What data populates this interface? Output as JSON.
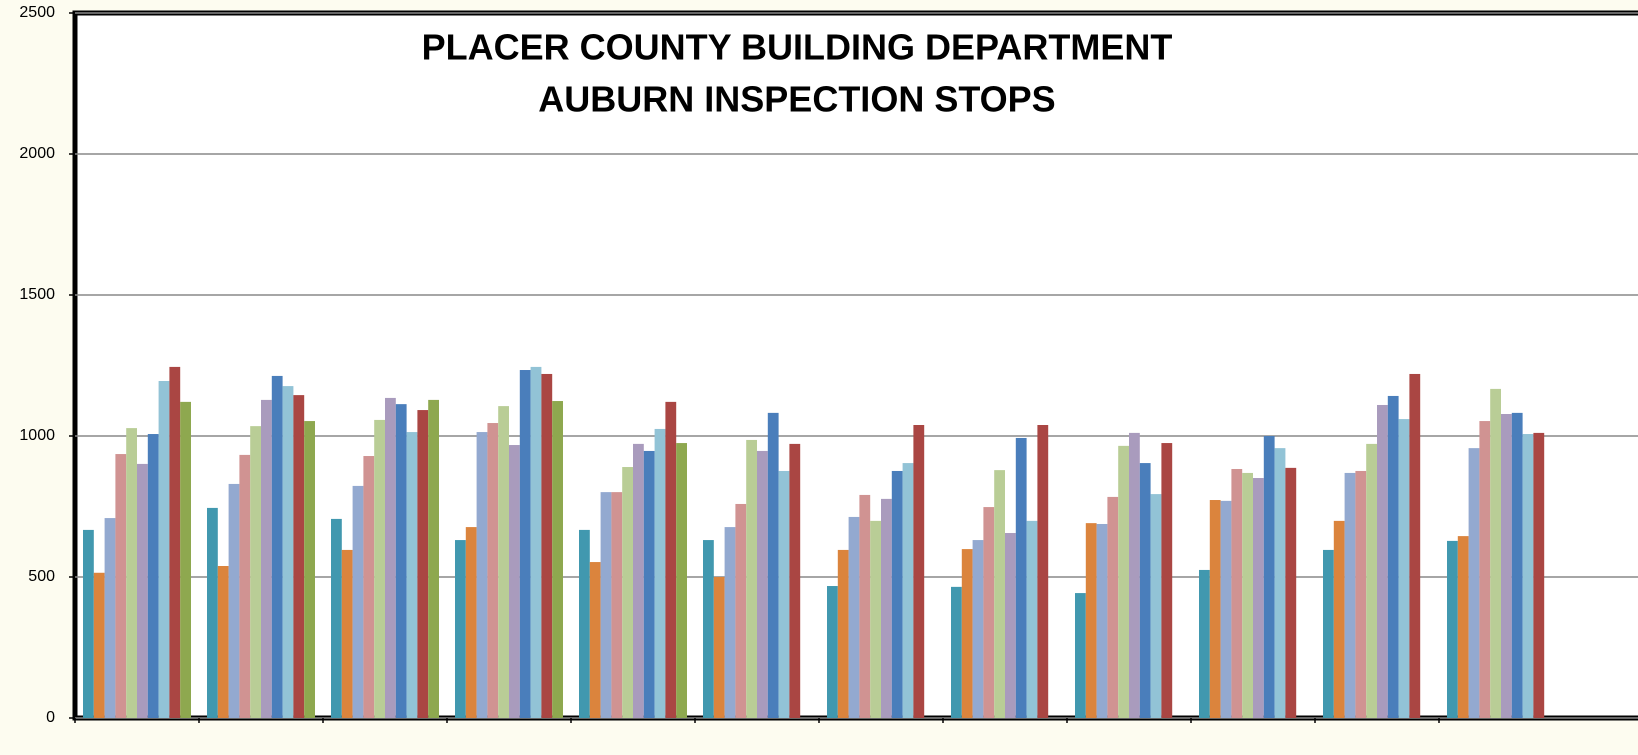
{
  "chart_data": {
    "type": "bar",
    "title": "PLACER COUNTY BUILDING DEPARTMENT",
    "subtitle": "AUBURN INSPECTION STOPS",
    "categories": [
      null,
      null,
      null,
      null,
      null,
      null,
      null,
      null,
      null,
      null,
      null,
      null
    ],
    "series": [
      {
        "color": "#4198af",
        "values": [
          667,
          745,
          706,
          631,
          667,
          631,
          468,
          465,
          443,
          525,
          596,
          628
        ]
      },
      {
        "color": "#db843d",
        "values": [
          515,
          539,
          596,
          677,
          553,
          500,
          596,
          599,
          691,
          773,
          699,
          645
        ]
      },
      {
        "color": "#93a9d0",
        "values": [
          709,
          830,
          823,
          1014,
          801,
          677,
          713,
          631,
          688,
          770,
          869,
          957
        ]
      },
      {
        "color": "#d09392",
        "values": [
          936,
          933,
          929,
          1046,
          801,
          759,
          791,
          748,
          784,
          883,
          876,
          1053
        ]
      },
      {
        "color": "#b9cd96",
        "values": [
          1028,
          1035,
          1057,
          1106,
          890,
          986,
          699,
          879,
          965,
          869,
          972,
          1167
        ]
      },
      {
        "color": "#a99bbd",
        "values": [
          901,
          1128,
          1135,
          968,
          972,
          947,
          777,
          656,
          1011,
          851,
          1110,
          1078
        ]
      },
      {
        "color": "#4a7ebb",
        "values": [
          1007,
          1213,
          1113,
          1234,
          947,
          1082,
          876,
          993,
          904,
          1000,
          1142,
          1082
        ]
      },
      {
        "color": "#92c3d6",
        "values": [
          1195,
          1177,
          1014,
          1245,
          1025,
          876,
          904,
          699,
          794,
          957,
          1060,
          1007
        ]
      },
      {
        "color": "#aa4643",
        "values": [
          1245,
          1145,
          1092,
          1220,
          1121,
          972,
          1039,
          1039,
          975,
          887,
          1220,
          1011
        ]
      },
      {
        "color": "#8ea84f",
        "values": [
          1121,
          1053,
          1128,
          1124,
          975,
          null,
          null,
          null,
          null,
          null,
          null,
          null
        ]
      }
    ],
    "ylim": [
      0,
      2500
    ],
    "yticks": [
      0,
      500,
      1000,
      1500,
      2000,
      2500
    ],
    "grid": true
  }
}
